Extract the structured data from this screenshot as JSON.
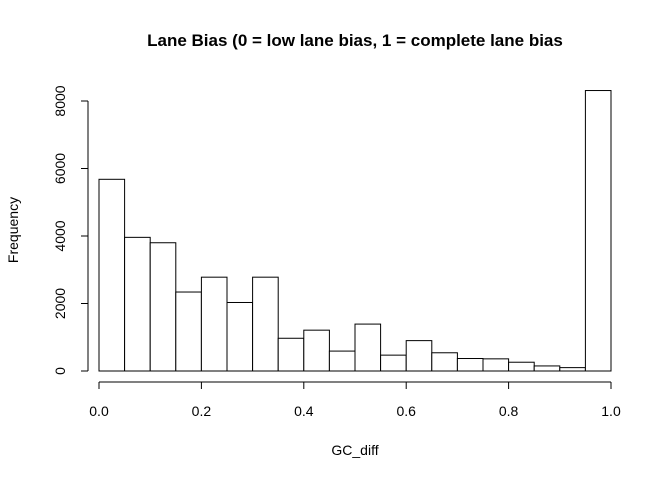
{
  "chart_data": {
    "type": "bar",
    "title": "Lane Bias (0 = low lane bias, 1 = complete lane bias",
    "xlabel": "GC_diff",
    "ylabel": "Frequency",
    "xlim": [
      0.0,
      1.0
    ],
    "ylim": [
      0,
      8000
    ],
    "x_ticks": [
      "0.0",
      "0.2",
      "0.4",
      "0.6",
      "0.8",
      "1.0"
    ],
    "y_ticks": [
      "0",
      "2000",
      "4000",
      "6000",
      "8000"
    ],
    "bin_width": 0.05,
    "bins": [
      {
        "start": 0.0,
        "end": 0.05,
        "count": 5680
      },
      {
        "start": 0.05,
        "end": 0.1,
        "count": 3960
      },
      {
        "start": 0.1,
        "end": 0.15,
        "count": 3800
      },
      {
        "start": 0.15,
        "end": 0.2,
        "count": 2340
      },
      {
        "start": 0.2,
        "end": 0.25,
        "count": 2780
      },
      {
        "start": 0.25,
        "end": 0.3,
        "count": 2030
      },
      {
        "start": 0.3,
        "end": 0.35,
        "count": 2780
      },
      {
        "start": 0.35,
        "end": 0.4,
        "count": 970
      },
      {
        "start": 0.4,
        "end": 0.45,
        "count": 1210
      },
      {
        "start": 0.45,
        "end": 0.5,
        "count": 590
      },
      {
        "start": 0.5,
        "end": 0.55,
        "count": 1390
      },
      {
        "start": 0.55,
        "end": 0.6,
        "count": 470
      },
      {
        "start": 0.6,
        "end": 0.65,
        "count": 900
      },
      {
        "start": 0.65,
        "end": 0.7,
        "count": 540
      },
      {
        "start": 0.7,
        "end": 0.75,
        "count": 370
      },
      {
        "start": 0.75,
        "end": 0.8,
        "count": 360
      },
      {
        "start": 0.8,
        "end": 0.85,
        "count": 260
      },
      {
        "start": 0.85,
        "end": 0.9,
        "count": 150
      },
      {
        "start": 0.9,
        "end": 0.95,
        "count": 100
      },
      {
        "start": 0.95,
        "end": 1.0,
        "count": 8310
      }
    ],
    "grid": false,
    "legend": "none",
    "bar_fill": "#ffffff",
    "bar_stroke": "#000000"
  }
}
